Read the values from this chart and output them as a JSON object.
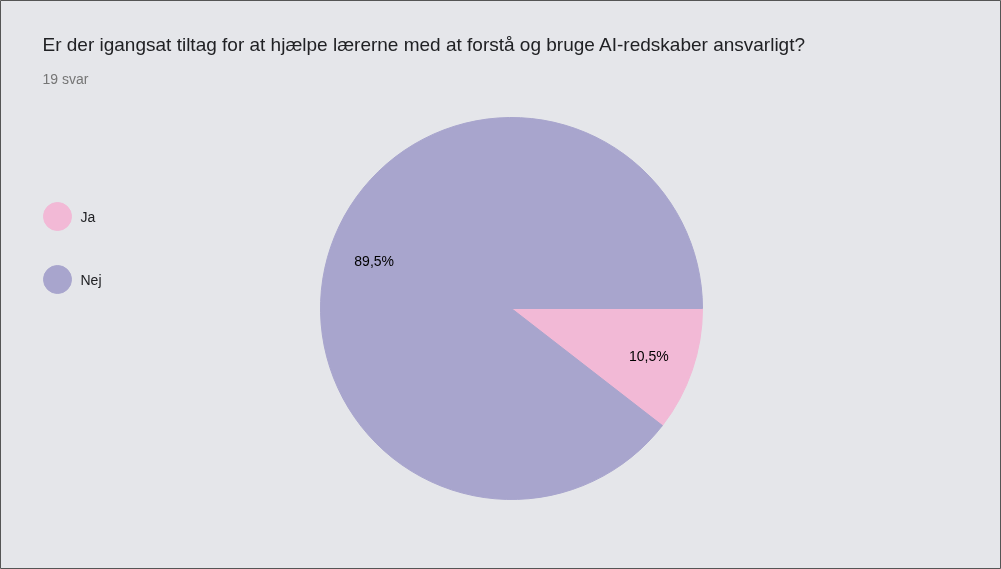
{
  "chart_data": {
    "type": "pie",
    "title": "Er der igangsat tiltag for at hjælpe lærerne med at forstå og bruge AI-redskaber ansvarligt?",
    "subtitle": "19 svar",
    "categories": [
      "Ja",
      "Nej"
    ],
    "values": [
      10.5,
      89.5
    ],
    "colors": [
      "#f2b9d6",
      "#a8a5cd"
    ],
    "value_labels": [
      "10,5%",
      "89,5%"
    ],
    "legend": "left"
  }
}
